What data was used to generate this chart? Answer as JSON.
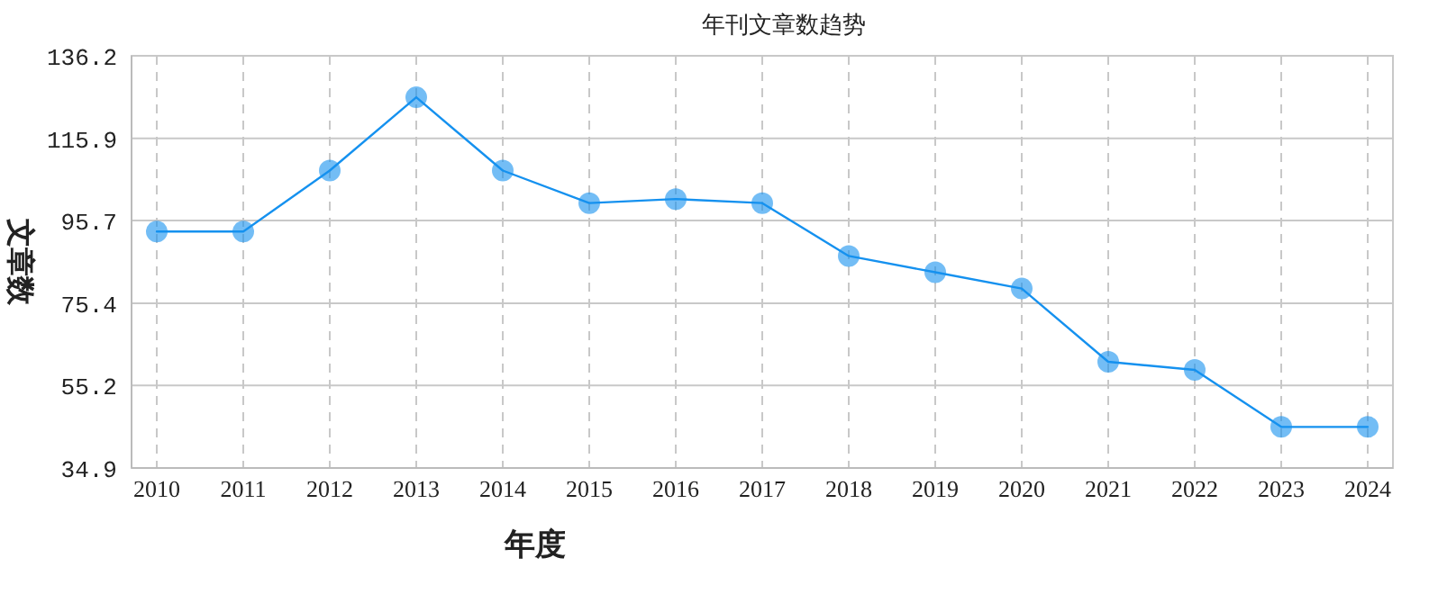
{
  "chart_data": {
    "type": "line",
    "title": "年刊文章数趋势",
    "xlabel": "年度",
    "ylabel": "文章数",
    "categories": [
      "2010",
      "2011",
      "2012",
      "2013",
      "2014",
      "2015",
      "2016",
      "2017",
      "2018",
      "2019",
      "2020",
      "2021",
      "2022",
      "2023",
      "2024"
    ],
    "series": [
      {
        "color": "#1591ef",
        "values": [
          93,
          93,
          108,
          126,
          108,
          100,
          101,
          100,
          87,
          83,
          79,
          61,
          59,
          45,
          45
        ]
      }
    ],
    "ylim": [
      34.9,
      136.2
    ],
    "yticks": [
      34.9,
      55.2,
      75.4,
      95.7,
      115.9,
      136.2
    ],
    "grid": true,
    "marker": "circle"
  }
}
